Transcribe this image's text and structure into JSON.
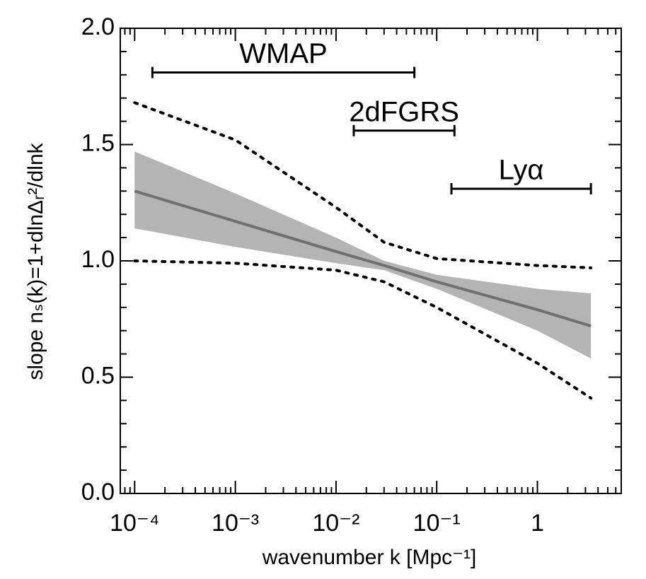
{
  "chart_data": {
    "type": "line",
    "xlabel": "wavenumber k [Mpc⁻¹]",
    "ylabel": "slope nₛ(k)=1+dlnΔᵣ²/dlnk",
    "xscale": "log",
    "xlim": [
      7.2e-05,
      6.8
    ],
    "ylim": [
      0,
      2
    ],
    "xticks": [
      {
        "value": 0.0001,
        "label": "10⁻⁴"
      },
      {
        "value": 0.001,
        "label": "10⁻³"
      },
      {
        "value": 0.01,
        "label": "10⁻²"
      },
      {
        "value": 0.1,
        "label": "10⁻¹"
      },
      1
    ],
    "yticks": [
      {
        "value": 0,
        "label": "0.0"
      },
      0.5,
      {
        "value": 1,
        "label": "1.0"
      },
      1.5,
      {
        "value": 2,
        "label": "2.0"
      }
    ],
    "x": [
      0.0001,
      0.001,
      0.01,
      0.03,
      0.1,
      1,
      3.4
    ],
    "band": {
      "color": "#b4b4b4",
      "upper": [
        1.47,
        1.29,
        1.1,
        1.0,
        0.94,
        0.88,
        0.86
      ],
      "lower": [
        1.14,
        1.06,
        0.99,
        0.96,
        0.88,
        0.7,
        0.58
      ]
    },
    "series": [
      {
        "color": "#707070",
        "style": "solid",
        "values": [
          1.3,
          1.17,
          1.04,
          0.98,
          0.91,
          0.79,
          0.72
        ]
      },
      {
        "color": "#000000",
        "style": "dotted",
        "values": [
          1.68,
          1.52,
          1.23,
          1.08,
          1.01,
          0.98,
          0.97
        ]
      },
      {
        "color": "#000000",
        "style": "dotted",
        "values": [
          1.0,
          0.99,
          0.96,
          0.91,
          0.8,
          0.56,
          0.41
        ]
      }
    ],
    "ranges": [
      {
        "label": "WMAP",
        "k": [
          0.00015,
          0.06
        ],
        "y": 1.81
      },
      {
        "label": "2dFGRS",
        "k": [
          0.015,
          0.15
        ],
        "y": 1.56
      },
      {
        "label": "Lyα",
        "k": [
          0.14,
          3.4
        ],
        "y": 1.31
      }
    ]
  }
}
